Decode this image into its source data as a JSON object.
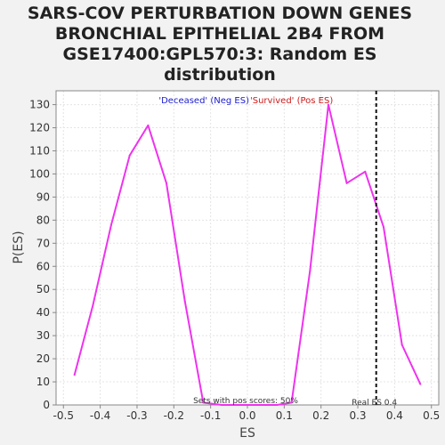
{
  "chart_data": {
    "type": "line",
    "title_lines": [
      "SARS-COV PERTURBATION DOWN GENES",
      "BRONCHIAL EPITHELIAL 2B4 FROM",
      "GSE17400:GPL570:3: Random ES",
      "distribution"
    ],
    "xlabel": "ES",
    "ylabel": "P(ES)",
    "xlim": [
      -0.52,
      0.52
    ],
    "ylim": [
      0,
      136
    ],
    "x_ticks": [
      -0.5,
      -0.4,
      -0.3,
      -0.2,
      -0.1,
      0.0,
      0.1,
      0.2,
      0.3,
      0.4,
      0.5
    ],
    "x_tick_labels": [
      "-0.5",
      "-0.4",
      "-0.3",
      "-0.2",
      "-0.1",
      "0.0",
      "0.1",
      "0.2",
      "0.3",
      "0.4",
      "0.5"
    ],
    "y_ticks": [
      0,
      10,
      20,
      30,
      40,
      50,
      60,
      70,
      80,
      90,
      100,
      110,
      120,
      130
    ],
    "y_tick_labels": [
      "0",
      "10",
      "20",
      "30",
      "40",
      "50",
      "60",
      "70",
      "80",
      "90",
      "100",
      "110",
      "120",
      "130"
    ],
    "grid": true,
    "series": [
      {
        "color": "#ee33ee",
        "points": [
          [
            -0.47,
            13
          ],
          [
            -0.42,
            43
          ],
          [
            -0.37,
            78
          ],
          [
            -0.32,
            108
          ],
          [
            -0.27,
            121
          ],
          [
            -0.22,
            96
          ],
          [
            -0.17,
            45
          ],
          [
            -0.12,
            1
          ],
          [
            -0.07,
            0
          ],
          [
            -0.02,
            0
          ],
          [
            0.03,
            0
          ],
          [
            0.08,
            0
          ],
          [
            0.12,
            1
          ],
          [
            0.17,
            58
          ],
          [
            0.22,
            130
          ],
          [
            0.27,
            96
          ],
          [
            0.32,
            101
          ],
          [
            0.37,
            77
          ],
          [
            0.42,
            26
          ],
          [
            0.47,
            9
          ]
        ]
      }
    ],
    "real_es": 0.35,
    "real_es_label": "Real ES 0.4",
    "legend": {
      "neg_label": "'Deceased' (Neg ES)",
      "neg_color": "#1a1acc",
      "pos_label": "'Survived' (Pos ES)",
      "pos_color": "#cc1a1a"
    },
    "annotation": "Sets with pos scores: 50%",
    "colors": {
      "background": "#f2f2f2",
      "plot_background": "#ffffff",
      "grid": "#e4e4e4",
      "axis": "#888888",
      "real_es_line": "#111111"
    }
  }
}
